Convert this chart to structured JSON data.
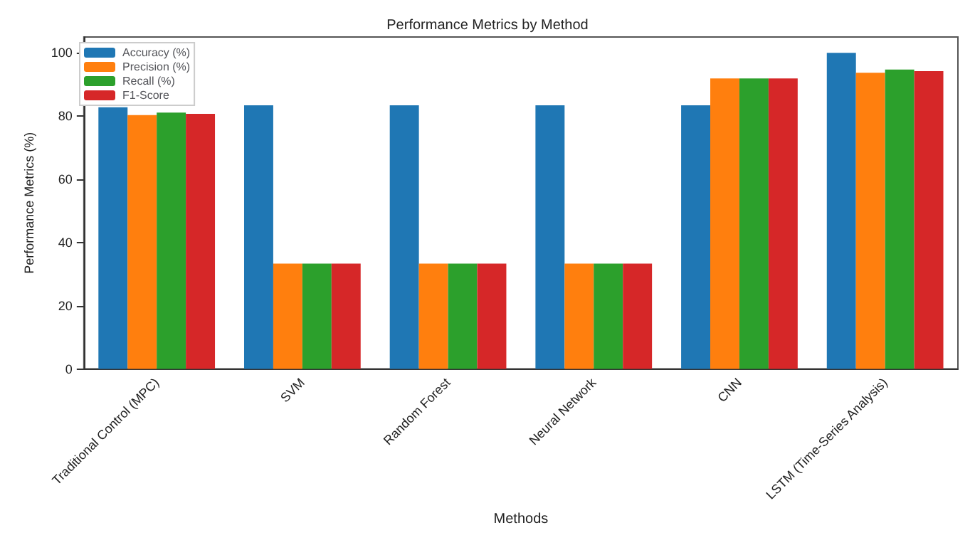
{
  "chart_data": {
    "type": "bar",
    "title": "Performance Metrics by Method",
    "xlabel": "Methods",
    "ylabel": "Performance Metrics (%)",
    "categories": [
      "Traditional Control (MPC)",
      "SVM",
      "Random Forest",
      "Neural Network",
      "CNN",
      "LSTM (Time-Series Analysis)"
    ],
    "series": [
      {
        "name": "Accuracy (%)",
        "color": "#1f77b4",
        "values": [
          82.8,
          83.4,
          83.4,
          83.4,
          83.4,
          100
        ]
      },
      {
        "name": "Precision (%)",
        "color": "#ff7f0e",
        "values": [
          80.3,
          33.3,
          33.3,
          33.3,
          91.9,
          93.7
        ]
      },
      {
        "name": "Recall (%)",
        "color": "#2ca02c",
        "values": [
          81.1,
          33.3,
          33.3,
          33.3,
          91.9,
          94.7
        ]
      },
      {
        "name": "F1-Score",
        "color": "#d62728",
        "values": [
          80.7,
          33.3,
          33.3,
          33.3,
          91.9,
          94.2
        ]
      }
    ],
    "ylim": [
      0,
      105
    ],
    "yticks": [
      0,
      20,
      40,
      60,
      80,
      100
    ],
    "grid": false,
    "legend": "top left"
  }
}
